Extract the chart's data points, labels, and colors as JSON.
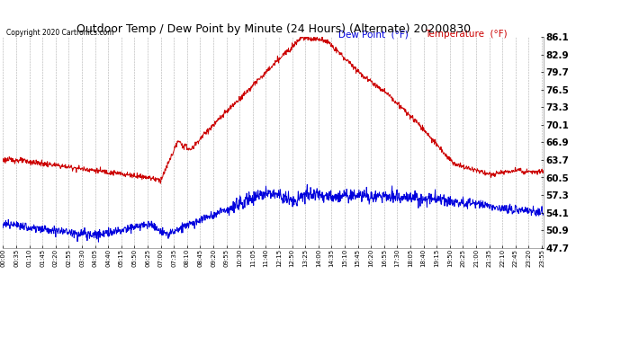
{
  "title": "Outdoor Temp / Dew Point by Minute (24 Hours) (Alternate) 20200830",
  "copyright": "Copyright 2020 Cartronics.com",
  "legend_dew": "Dew Point  (°F)",
  "legend_temp": "Temperature  (°F)",
  "dew_color": "#0000dd",
  "temp_color": "#cc0000",
  "background_color": "#ffffff",
  "grid_color": "#999999",
  "yticks": [
    47.7,
    50.9,
    54.1,
    57.3,
    60.5,
    63.7,
    66.9,
    70.1,
    73.3,
    76.5,
    79.7,
    82.9,
    86.1
  ],
  "ymin": 47.7,
  "ymax": 86.1,
  "total_minutes": 1440
}
